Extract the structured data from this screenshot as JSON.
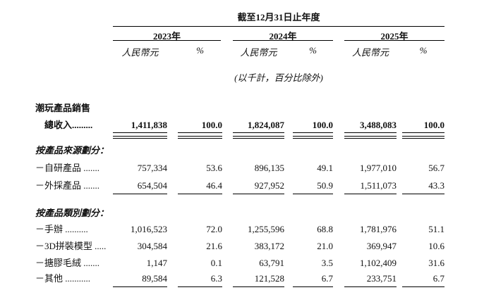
{
  "table": {
    "period_header": "截至12月31日止年度",
    "years": [
      "2023年",
      "2024年",
      "2025年"
    ],
    "currency_label": "人民幣元",
    "percent_label": "%",
    "units_note": "(以千計，百分比除外)",
    "rows": [
      {
        "type": "section",
        "label": "潮玩產品銷售"
      },
      {
        "type": "total",
        "label": "總收入.........",
        "values": [
          "1,411,838",
          "100.0",
          "1,824,087",
          "100.0",
          "3,488,083",
          "100.0"
        ]
      },
      {
        "type": "subheader",
        "label": "按產品來源劃分："
      },
      {
        "type": "data",
        "label": "－自研產品 .......",
        "values": [
          "757,334",
          "53.6",
          "896,135",
          "49.1",
          "1,977,010",
          "56.7"
        ]
      },
      {
        "type": "data-underline",
        "label": "－外採產品 .......",
        "values": [
          "654,504",
          "46.4",
          "927,952",
          "50.9",
          "1,511,073",
          "43.3"
        ]
      },
      {
        "type": "subheader",
        "label": "按產品類別劃分："
      },
      {
        "type": "data",
        "label": "－手辦 ..........",
        "values": [
          "1,016,523",
          "72.0",
          "1,255,596",
          "68.8",
          "1,781,976",
          "51.1"
        ]
      },
      {
        "type": "data",
        "label": "－3D拼裝模型 .....",
        "values": [
          "304,584",
          "21.6",
          "383,172",
          "21.0",
          "369,947",
          "10.6"
        ]
      },
      {
        "type": "data",
        "label": "－搪膠毛絨 .......",
        "values": [
          "1,147",
          "0.1",
          "63,791",
          "3.5",
          "1,102,409",
          "31.6"
        ]
      },
      {
        "type": "data-underline",
        "label": "－其他 ...........",
        "values": [
          "89,584",
          "6.3",
          "121,528",
          "6.7",
          "233,751",
          "6.7"
        ]
      }
    ]
  }
}
